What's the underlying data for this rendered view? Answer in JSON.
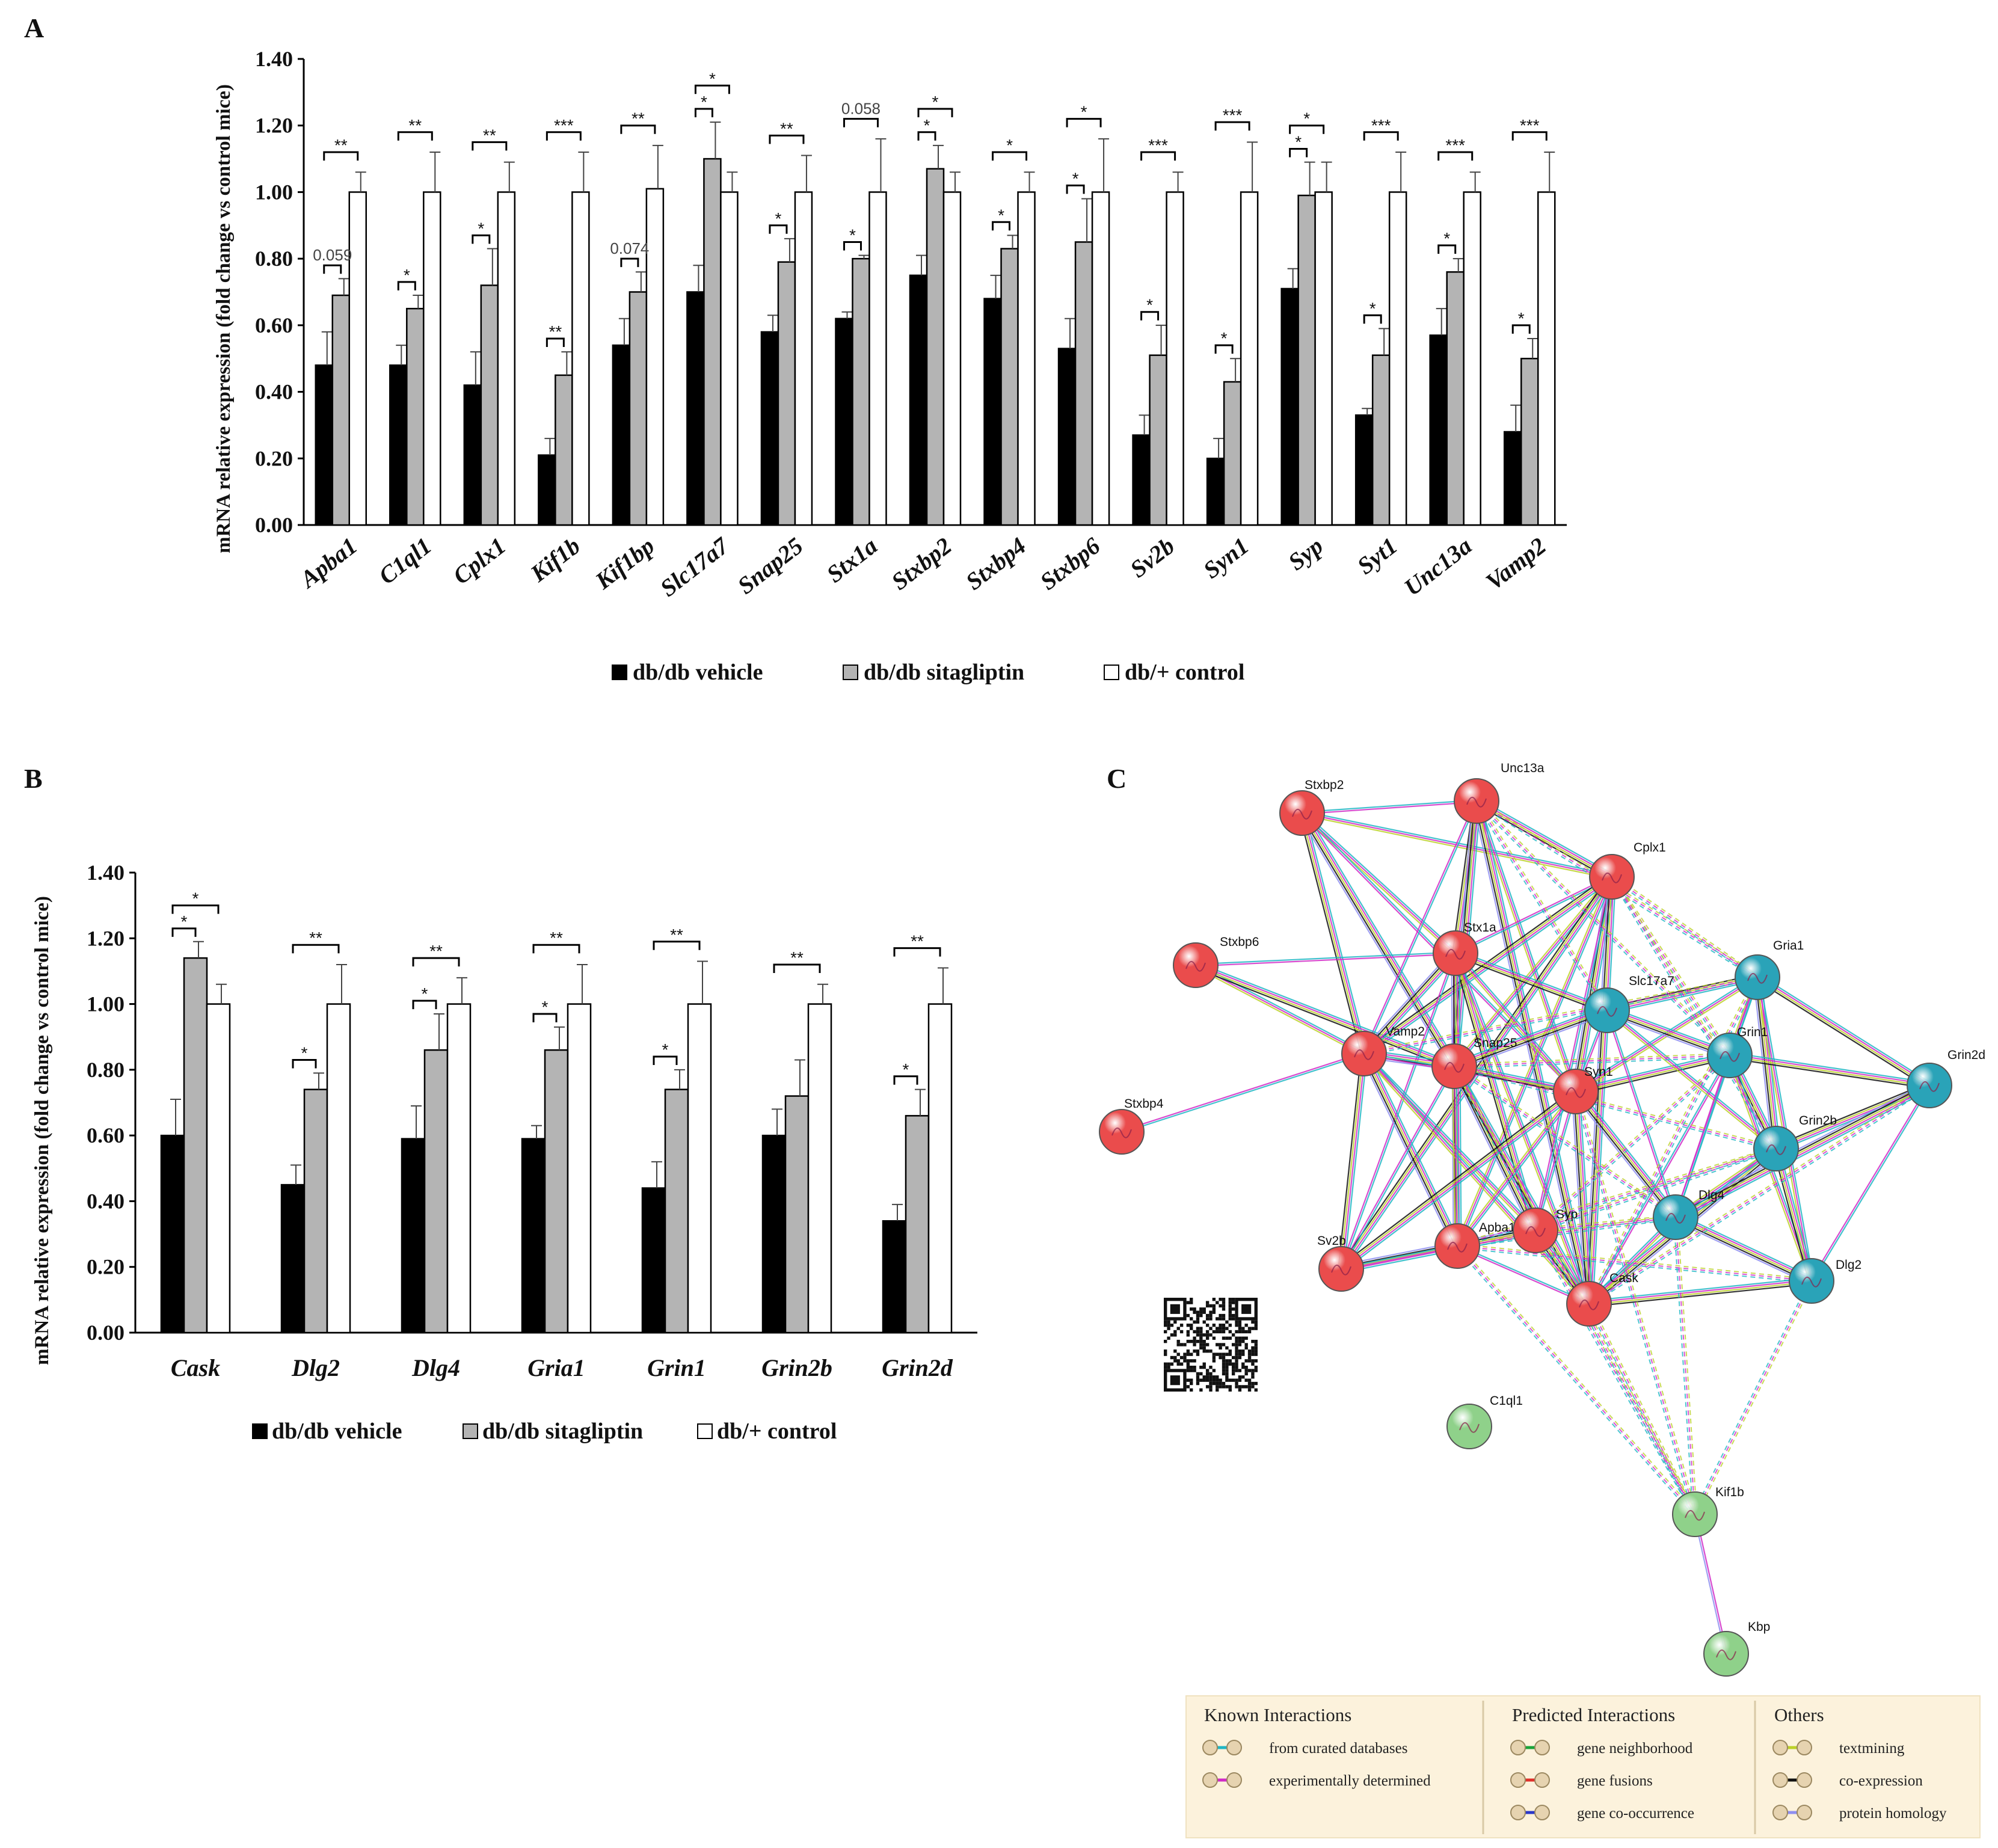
{
  "panels": {
    "A": {
      "letter": "A",
      "ylabel": "mRNA relative expression (fold change vs control mice)",
      "legend": [
        "db/db vehicle",
        "db/db sitagliptin",
        "db/+ control"
      ]
    },
    "B": {
      "letter": "B",
      "ylabel": "mRNA relative expression (fold change vs control mice)",
      "legend": [
        "db/db vehicle",
        "db/db sitagliptin",
        "db/+ control"
      ]
    },
    "C": {
      "letter": "C",
      "legend": {
        "groups": [
          {
            "title": "Known Interactions",
            "items": [
              {
                "label": "from curated databases",
                "color": "#21b6c4"
              },
              {
                "label": "experimentally determined",
                "color": "#d12bc7"
              }
            ]
          },
          {
            "title": "Predicted Interactions",
            "items": [
              {
                "label": "gene neighborhood",
                "color": "#1aa43a"
              },
              {
                "label": "gene fusions",
                "color": "#e0302a"
              },
              {
                "label": "gene co-occurrence",
                "color": "#2b38c9"
              }
            ]
          },
          {
            "title": "Others",
            "items": [
              {
                "label": "textmining",
                "color": "#bcd12a"
              },
              {
                "label": "co-expression",
                "color": "#111111"
              },
              {
                "label": "protein homology",
                "color": "#8f8ff0"
              }
            ]
          }
        ]
      }
    }
  },
  "chart_data": [
    {
      "type": "bar",
      "panel": "A",
      "ylabel": "mRNA relative expression (fold change vs control mice)",
      "ylim": [
        0,
        1.4
      ],
      "yticks": [
        "0.00",
        "0.20",
        "0.40",
        "0.60",
        "0.80",
        "1.00",
        "1.20",
        "1.40"
      ],
      "categories": [
        "Apba1",
        "C1ql1",
        "Cplx1",
        "Kif1b",
        "Kif1bp",
        "Slc17a7",
        "Snap25",
        "Stx1a",
        "Stxbp2",
        "Stxbp4",
        "Stxbp6",
        "Sv2b",
        "Syn1",
        "Syp",
        "Syt1",
        "Unc13a",
        "Vamp2"
      ],
      "series": [
        {
          "name": "db/db vehicle",
          "color": "#000000",
          "values": [
            0.48,
            0.48,
            0.42,
            0.21,
            0.54,
            0.7,
            0.58,
            0.62,
            0.75,
            0.68,
            0.53,
            0.27,
            0.2,
            0.71,
            0.33,
            0.57,
            0.28
          ],
          "errors": [
            0.1,
            0.06,
            0.1,
            0.05,
            0.08,
            0.08,
            0.05,
            0.02,
            0.06,
            0.07,
            0.09,
            0.06,
            0.06,
            0.06,
            0.02,
            0.08,
            0.08
          ]
        },
        {
          "name": "db/db sitagliptin",
          "color": "#b4b4b4",
          "values": [
            0.69,
            0.65,
            0.72,
            0.45,
            0.7,
            1.1,
            0.79,
            0.8,
            1.07,
            0.83,
            0.85,
            0.51,
            0.43,
            0.99,
            0.51,
            0.76,
            0.5
          ],
          "errors": [
            0.05,
            0.04,
            0.11,
            0.07,
            0.06,
            0.11,
            0.07,
            0.01,
            0.07,
            0.04,
            0.13,
            0.09,
            0.07,
            0.1,
            0.08,
            0.04,
            0.06
          ]
        },
        {
          "name": "db/+ control",
          "color": "#ffffff",
          "values": [
            1.0,
            1.0,
            1.0,
            1.0,
            1.01,
            1.0,
            1.0,
            1.0,
            1.0,
            1.0,
            1.0,
            1.0,
            1.0,
            1.0,
            1.0,
            1.0,
            1.0
          ],
          "errors": [
            0.06,
            0.12,
            0.09,
            0.12,
            0.13,
            0.06,
            0.11,
            0.16,
            0.06,
            0.06,
            0.16,
            0.06,
            0.15,
            0.09,
            0.12,
            0.06,
            0.12
          ]
        }
      ],
      "annotations": [
        {
          "cat": 0,
          "from": 0,
          "to": 1,
          "label": "0.059"
        },
        {
          "cat": 0,
          "from": 0,
          "to": 2,
          "label": "**"
        },
        {
          "cat": 1,
          "from": 0,
          "to": 1,
          "label": "*"
        },
        {
          "cat": 1,
          "from": 0,
          "to": 2,
          "label": "**"
        },
        {
          "cat": 2,
          "from": 0,
          "to": 1,
          "label": "*"
        },
        {
          "cat": 2,
          "from": 0,
          "to": 2,
          "label": "**"
        },
        {
          "cat": 3,
          "from": 0,
          "to": 1,
          "label": "**"
        },
        {
          "cat": 3,
          "from": 0,
          "to": 2,
          "label": "***"
        },
        {
          "cat": 4,
          "from": 0,
          "to": 1,
          "label": "0.074"
        },
        {
          "cat": 4,
          "from": 0,
          "to": 2,
          "label": "**"
        },
        {
          "cat": 5,
          "from": 0,
          "to": 1,
          "label": "*"
        },
        {
          "cat": 5,
          "from": 0,
          "to": 2,
          "label": "*"
        },
        {
          "cat": 6,
          "from": 0,
          "to": 1,
          "label": "*"
        },
        {
          "cat": 6,
          "from": 0,
          "to": 2,
          "label": "**"
        },
        {
          "cat": 7,
          "from": 0,
          "to": 1,
          "label": "*"
        },
        {
          "cat": 7,
          "from": 0,
          "to": 2,
          "label": "0.058"
        },
        {
          "cat": 8,
          "from": 0,
          "to": 1,
          "label": "*"
        },
        {
          "cat": 8,
          "from": 0,
          "to": 2,
          "label": "*"
        },
        {
          "cat": 9,
          "from": 0,
          "to": 1,
          "label": "*"
        },
        {
          "cat": 9,
          "from": 0,
          "to": 2,
          "label": "*"
        },
        {
          "cat": 10,
          "from": 0,
          "to": 1,
          "label": "*"
        },
        {
          "cat": 10,
          "from": 0,
          "to": 2,
          "label": "*"
        },
        {
          "cat": 11,
          "from": 0,
          "to": 1,
          "label": "*"
        },
        {
          "cat": 11,
          "from": 0,
          "to": 2,
          "label": "***"
        },
        {
          "cat": 12,
          "from": 0,
          "to": 1,
          "label": "*"
        },
        {
          "cat": 12,
          "from": 0,
          "to": 2,
          "label": "***"
        },
        {
          "cat": 13,
          "from": 0,
          "to": 1,
          "label": "*"
        },
        {
          "cat": 13,
          "from": 0,
          "to": 2,
          "label": "*"
        },
        {
          "cat": 14,
          "from": 0,
          "to": 1,
          "label": "*"
        },
        {
          "cat": 14,
          "from": 0,
          "to": 2,
          "label": "***"
        },
        {
          "cat": 15,
          "from": 0,
          "to": 1,
          "label": "*"
        },
        {
          "cat": 15,
          "from": 0,
          "to": 2,
          "label": "***"
        },
        {
          "cat": 16,
          "from": 0,
          "to": 1,
          "label": "*"
        },
        {
          "cat": 16,
          "from": 0,
          "to": 2,
          "label": "***"
        }
      ]
    },
    {
      "type": "bar",
      "panel": "B",
      "ylabel": "mRNA relative expression (fold change vs control mice)",
      "ylim": [
        0,
        1.4
      ],
      "yticks": [
        "0.00",
        "0.20",
        "0.40",
        "0.60",
        "0.80",
        "1.00",
        "1.20",
        "1.40"
      ],
      "categories": [
        "Cask",
        "Dlg2",
        "Dlg4",
        "Gria1",
        "Grin1",
        "Grin2b",
        "Grin2d"
      ],
      "series": [
        {
          "name": "db/db vehicle",
          "color": "#000000",
          "values": [
            0.6,
            0.45,
            0.59,
            0.59,
            0.44,
            0.6,
            0.34
          ],
          "errors": [
            0.11,
            0.06,
            0.1,
            0.04,
            0.08,
            0.08,
            0.05
          ]
        },
        {
          "name": "db/db sitagliptin",
          "color": "#b4b4b4",
          "values": [
            1.14,
            0.74,
            0.86,
            0.86,
            0.74,
            0.72,
            0.66
          ],
          "errors": [
            0.05,
            0.05,
            0.11,
            0.07,
            0.06,
            0.11,
            0.08
          ]
        },
        {
          "name": "db/+ control",
          "color": "#ffffff",
          "values": [
            1.0,
            1.0,
            1.0,
            1.0,
            1.0,
            1.0,
            1.0
          ],
          "errors": [
            0.06,
            0.12,
            0.08,
            0.12,
            0.13,
            0.06,
            0.11
          ]
        }
      ],
      "annotations": [
        {
          "cat": 0,
          "from": 0,
          "to": 1,
          "label": "*"
        },
        {
          "cat": 0,
          "from": 0,
          "to": 2,
          "label": "*"
        },
        {
          "cat": 1,
          "from": 0,
          "to": 1,
          "label": "*"
        },
        {
          "cat": 1,
          "from": 0,
          "to": 2,
          "label": "**"
        },
        {
          "cat": 2,
          "from": 0,
          "to": 1,
          "label": "*"
        },
        {
          "cat": 2,
          "from": 0,
          "to": 2,
          "label": "**"
        },
        {
          "cat": 3,
          "from": 0,
          "to": 1,
          "label": "*"
        },
        {
          "cat": 3,
          "from": 0,
          "to": 2,
          "label": "**"
        },
        {
          "cat": 4,
          "from": 0,
          "to": 1,
          "label": "*"
        },
        {
          "cat": 4,
          "from": 0,
          "to": 2,
          "label": "**"
        },
        {
          "cat": 5,
          "from": 0,
          "to": 2,
          "label": "**"
        },
        {
          "cat": 6,
          "from": 0,
          "to": 1,
          "label": "*"
        },
        {
          "cat": 6,
          "from": 0,
          "to": 2,
          "label": "**"
        }
      ]
    },
    {
      "type": "network",
      "panel": "C",
      "nodes": [
        {
          "id": "Stxbp2",
          "cluster": "red"
        },
        {
          "id": "Unc13a",
          "cluster": "red"
        },
        {
          "id": "Cplx1",
          "cluster": "red"
        },
        {
          "id": "Stxbp6",
          "cluster": "red"
        },
        {
          "id": "Stx1a",
          "cluster": "red"
        },
        {
          "id": "Vamp2",
          "cluster": "red"
        },
        {
          "id": "Snap25",
          "cluster": "red"
        },
        {
          "id": "Syn1",
          "cluster": "red"
        },
        {
          "id": "Stxbp4",
          "cluster": "red"
        },
        {
          "id": "Sv2b",
          "cluster": "red"
        },
        {
          "id": "Apba1",
          "cluster": "red"
        },
        {
          "id": "Syp",
          "cluster": "red"
        },
        {
          "id": "Cask",
          "cluster": "red"
        },
        {
          "id": "Gria1",
          "cluster": "blue"
        },
        {
          "id": "Slc17a7",
          "cluster": "blue"
        },
        {
          "id": "Grin1",
          "cluster": "blue"
        },
        {
          "id": "Grin2d",
          "cluster": "blue"
        },
        {
          "id": "Grin2b",
          "cluster": "blue"
        },
        {
          "id": "Dlg4",
          "cluster": "blue"
        },
        {
          "id": "Dlg2",
          "cluster": "blue"
        },
        {
          "id": "C1ql1",
          "cluster": "green"
        },
        {
          "id": "Kif1b",
          "cluster": "green"
        },
        {
          "id": "Kbp",
          "cluster": "green"
        }
      ],
      "cluster_colors": {
        "red": "#ea4c4c",
        "blue": "#2aa3b8",
        "green": "#8fd18a"
      },
      "edges_solid": [
        [
          "Stxbp2",
          "Unc13a"
        ],
        [
          "Stxbp2",
          "Stx1a"
        ],
        [
          "Stxbp2",
          "Vamp2"
        ],
        [
          "Stxbp2",
          "Snap25"
        ],
        [
          "Stxbp2",
          "Syn1"
        ],
        [
          "Stxbp2",
          "Cplx1"
        ],
        [
          "Unc13a",
          "Stx1a"
        ],
        [
          "Unc13a",
          "Snap25"
        ],
        [
          "Unc13a",
          "Vamp2"
        ],
        [
          "Unc13a",
          "Syn1"
        ],
        [
          "Unc13a",
          "Cplx1"
        ],
        [
          "Unc13a",
          "Cask"
        ],
        [
          "Cplx1",
          "Stx1a"
        ],
        [
          "Cplx1",
          "Snap25"
        ],
        [
          "Cplx1",
          "Vamp2"
        ],
        [
          "Cplx1",
          "Syn1"
        ],
        [
          "Cplx1",
          "Syp"
        ],
        [
          "Cplx1",
          "Apba1"
        ],
        [
          "Cplx1",
          "Sv2b"
        ],
        [
          "Cplx1",
          "Cask"
        ],
        [
          "Stxbp6",
          "Stx1a"
        ],
        [
          "Stxbp6",
          "Vamp2"
        ],
        [
          "Stxbp6",
          "Snap25"
        ],
        [
          "Stx1a",
          "Vamp2"
        ],
        [
          "Stx1a",
          "Snap25"
        ],
        [
          "Stx1a",
          "Syn1"
        ],
        [
          "Stx1a",
          "Syp"
        ],
        [
          "Stx1a",
          "Apba1"
        ],
        [
          "Stx1a",
          "Sv2b"
        ],
        [
          "Stx1a",
          "Cask"
        ],
        [
          "Stx1a",
          "Slc17a7"
        ],
        [
          "Vamp2",
          "Snap25"
        ],
        [
          "Vamp2",
          "Syn1"
        ],
        [
          "Vamp2",
          "Syp"
        ],
        [
          "Vamp2",
          "Sv2b"
        ],
        [
          "Vamp2",
          "Apba1"
        ],
        [
          "Vamp2",
          "Stxbp4"
        ],
        [
          "Vamp2",
          "Cask"
        ],
        [
          "Snap25",
          "Syn1"
        ],
        [
          "Snap25",
          "Syp"
        ],
        [
          "Snap25",
          "Sv2b"
        ],
        [
          "Snap25",
          "Apba1"
        ],
        [
          "Snap25",
          "Cask"
        ],
        [
          "Snap25",
          "Slc17a7"
        ],
        [
          "Syn1",
          "Syp"
        ],
        [
          "Syn1",
          "Apba1"
        ],
        [
          "Syn1",
          "Sv2b"
        ],
        [
          "Syn1",
          "Cask"
        ],
        [
          "Syn1",
          "Slc17a7"
        ],
        [
          "Syn1",
          "Gria1"
        ],
        [
          "Syn1",
          "Grin1"
        ],
        [
          "Syn1",
          "Dlg4"
        ],
        [
          "Apba1",
          "Cask"
        ],
        [
          "Apba1",
          "Syp"
        ],
        [
          "Syp",
          "Cask"
        ],
        [
          "Syp",
          "Sv2b"
        ],
        [
          "Sv2b",
          "Apba1"
        ],
        [
          "Cask",
          "Dlg4"
        ],
        [
          "Cask",
          "Dlg2"
        ],
        [
          "Cask",
          "Grin2b"
        ],
        [
          "Cask",
          "Grin1"
        ],
        [
          "Gria1",
          "Grin1"
        ],
        [
          "Gria1",
          "Grin2d"
        ],
        [
          "Gria1",
          "Grin2b"
        ],
        [
          "Gria1",
          "Dlg4"
        ],
        [
          "Gria1",
          "Dlg2"
        ],
        [
          "Gria1",
          "Slc17a7"
        ],
        [
          "Slc17a7",
          "Grin1"
        ],
        [
          "Slc17a7",
          "Dlg4"
        ],
        [
          "Slc17a7",
          "Grin2b"
        ],
        [
          "Grin1",
          "Grin2d"
        ],
        [
          "Grin1",
          "Grin2b"
        ],
        [
          "Grin1",
          "Dlg4"
        ],
        [
          "Grin1",
          "Dlg2"
        ],
        [
          "Grin2d",
          "Grin2b"
        ],
        [
          "Grin2d",
          "Dlg4"
        ],
        [
          "Grin2d",
          "Dlg2"
        ],
        [
          "Grin2b",
          "Dlg4"
        ],
        [
          "Grin2b",
          "Dlg2"
        ],
        [
          "Dlg4",
          "Dlg2"
        ],
        [
          "Kif1b",
          "Kbp"
        ]
      ],
      "edges_dashed": [
        [
          "Unc13a",
          "Gria1"
        ],
        [
          "Unc13a",
          "Slc17a7"
        ],
        [
          "Unc13a",
          "Grin1"
        ],
        [
          "Cplx1",
          "Gria1"
        ],
        [
          "Cplx1",
          "Grin1"
        ],
        [
          "Cplx1",
          "Grin2b"
        ],
        [
          "Snap25",
          "Grin1"
        ],
        [
          "Snap25",
          "Grin2b"
        ],
        [
          "Snap25",
          "Dlg4"
        ],
        [
          "Vamp2",
          "Gria1"
        ],
        [
          "Syp",
          "Grin1"
        ],
        [
          "Syp",
          "Dlg4"
        ],
        [
          "Syp",
          "Grin2b"
        ],
        [
          "Apba1",
          "Dlg4"
        ],
        [
          "Apba1",
          "Grin2b"
        ],
        [
          "Apba1",
          "Dlg2"
        ],
        [
          "Cask",
          "Gria1"
        ],
        [
          "Cask",
          "Grin2d"
        ],
        [
          "Cask",
          "Kif1b"
        ],
        [
          "Syp",
          "Kif1b"
        ],
        [
          "Syn1",
          "Kif1b"
        ],
        [
          "Dlg2",
          "Kif1b"
        ],
        [
          "Dlg4",
          "Kif1b"
        ],
        [
          "Apba1",
          "Kif1b"
        ],
        [
          "Snap25",
          "Kif1b"
        ]
      ]
    }
  ]
}
